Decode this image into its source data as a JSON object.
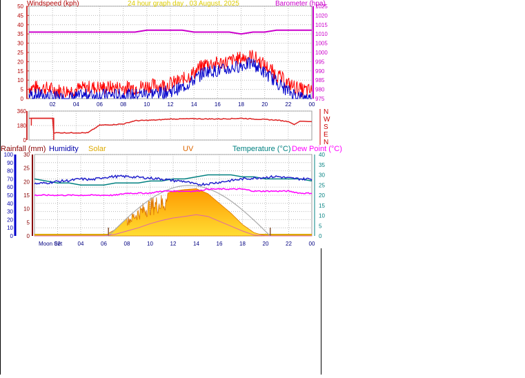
{
  "title": "24 hour graph day , 03 August, 2025",
  "colors": {
    "wind": "#ff0000",
    "wind2": "#0000cc",
    "baro": "#cc00cc",
    "dir": "#dd2222",
    "rain": "#880000",
    "hum": "#0000aa",
    "solar": "#ddaa00",
    "uv": "#dd6600",
    "temp": "#008080",
    "dew": "#ff00ff",
    "grid": "#b8b8b8",
    "axisline": "#cc3333"
  },
  "panel1": {
    "left_label": "Windspeed (kph)",
    "right_label": "Barometer (hpa)",
    "y_left_ticks": [
      "50",
      "45",
      "40",
      "35",
      "30",
      "25",
      "20",
      "15",
      "10",
      "5",
      "0"
    ],
    "y_right_ticks": [
      "1025",
      "1020",
      "1015",
      "1010",
      "1005",
      "1000",
      "995",
      "990",
      "985",
      "980",
      "975"
    ],
    "x_ticks": [
      "02",
      "04",
      "06",
      "08",
      "10",
      "12",
      "14",
      "16",
      "18",
      "20",
      "22",
      "00"
    ]
  },
  "panel2": {
    "y_ticks": [
      "360",
      "180",
      "0"
    ],
    "dir_labels": [
      "N",
      "W",
      "S",
      "E",
      "N"
    ]
  },
  "panel3": {
    "legend": {
      "rain": "Rainfall (mm)",
      "hum": "Humidity",
      "solar": "Solar",
      "uv": "UV",
      "temp": "Temperature (°C)",
      "dew": "Dew Point (°C)"
    },
    "y_hum_ticks": [
      "100",
      "90",
      "80",
      "70",
      "60",
      "50",
      "40",
      "30",
      "20",
      "10",
      "0"
    ],
    "y_rain_ticks": [
      "30",
      "25",
      "20",
      "15",
      "10",
      "5",
      "0"
    ],
    "y_temp_ticks": [
      "40",
      "35",
      "30",
      "25",
      "20",
      "15",
      "10",
      "5",
      "0"
    ],
    "x_ticks": [
      "Moon Set",
      "02",
      "04",
      "06",
      "08",
      "10",
      "12",
      "14",
      "16",
      "18",
      "20",
      "22",
      "00"
    ]
  },
  "chart_data": [
    {
      "type": "line",
      "title": "24 hour graph day , 03 August, 2025",
      "xlabel": "",
      "ylabel": "Windspeed (kph)",
      "y2label": "Barometer (hpa)",
      "ylim": [
        0,
        50
      ],
      "y2lim": [
        975,
        1025
      ],
      "x": [
        0,
        1,
        2,
        3,
        4,
        5,
        6,
        7,
        8,
        9,
        10,
        11,
        12,
        13,
        14,
        15,
        16,
        17,
        18,
        19,
        20,
        21,
        22,
        23,
        24
      ],
      "series": [
        {
          "name": "Windspeed (kph)",
          "axis": "left",
          "values": [
            4,
            4,
            3,
            2,
            3,
            4,
            4,
            4,
            4,
            4,
            5,
            5,
            6,
            8,
            12,
            17,
            17,
            18,
            20,
            21,
            16,
            11,
            6,
            3,
            2
          ]
        },
        {
          "name": "Barometer (hpa)",
          "axis": "right",
          "values": [
            1011,
            1011,
            1011,
            1011,
            1011,
            1011,
            1011,
            1011,
            1011,
            1011,
            1012,
            1012,
            1012,
            1012,
            1011,
            1011,
            1011,
            1011,
            1010,
            1011,
            1011,
            1012,
            1012,
            1012,
            1012
          ]
        }
      ],
      "grid": true
    },
    {
      "type": "line",
      "ylabel": "Wind direction",
      "ylim": [
        0,
        360
      ],
      "x": [
        0,
        1,
        2,
        2.1,
        3,
        4,
        5,
        6,
        7,
        8,
        9,
        10,
        11,
        12,
        13,
        14,
        15,
        16,
        17,
        18,
        19,
        20,
        21,
        22,
        22.5,
        23,
        24
      ],
      "series": [
        {
          "name": "Wind direction",
          "values": [
            270,
            270,
            270,
            90,
            90,
            90,
            90,
            185,
            190,
            200,
            240,
            245,
            250,
            262,
            262,
            265,
            262,
            262,
            265,
            270,
            262,
            255,
            248,
            230,
            192,
            235,
            228
          ]
        }
      ],
      "grid": true
    },
    {
      "type": "area",
      "ylabel": "Humidity / Rainfall (mm)",
      "y2label": "Temperature (°C)",
      "ylim": [
        0,
        100
      ],
      "y2lim": [
        0,
        40
      ],
      "x": [
        0,
        1,
        2,
        3,
        4,
        5,
        6,
        7,
        8,
        9,
        10,
        11,
        12,
        13,
        14,
        15,
        16,
        17,
        18,
        19,
        20,
        21,
        22,
        23,
        24
      ],
      "series": [
        {
          "name": "Humidity",
          "axis": "left",
          "values": [
            64,
            65,
            67,
            68,
            70,
            69,
            72,
            73,
            73,
            72,
            71,
            70,
            68,
            67,
            63,
            64,
            66,
            68,
            70,
            71,
            72,
            73,
            71,
            70,
            70
          ]
        },
        {
          "name": "Temperature (°C)",
          "axis": "right",
          "values": [
            28,
            27,
            26,
            26,
            25,
            25,
            25,
            26,
            26,
            26,
            27,
            27,
            28,
            28,
            29,
            30,
            30,
            30,
            29,
            29,
            28,
            28,
            28,
            28,
            27
          ]
        },
        {
          "name": "Dew Point (°C)",
          "axis": "right",
          "values": [
            20,
            20,
            20,
            20,
            20,
            20,
            20,
            20,
            21,
            21,
            21,
            22,
            22,
            22,
            22,
            23,
            23,
            23,
            23,
            22,
            22,
            22,
            22,
            21,
            21
          ]
        },
        {
          "name": "Solar",
          "axis": "left",
          "values": [
            0,
            0,
            0,
            0,
            0,
            0,
            0,
            8,
            22,
            35,
            45,
            50,
            55,
            57,
            58,
            52,
            40,
            28,
            14,
            4,
            0,
            0,
            0,
            0,
            0
          ]
        },
        {
          "name": "UV",
          "axis": "left",
          "values": [
            0,
            0,
            0,
            0,
            0,
            0,
            0,
            2,
            6,
            10,
            15,
            19,
            22,
            24,
            26,
            24,
            18,
            12,
            6,
            1,
            0,
            0,
            0,
            0,
            0
          ]
        },
        {
          "name": "Rainfall (mm)",
          "axis": "left",
          "values": [
            0,
            0,
            0,
            0,
            0,
            0,
            0,
            0,
            0,
            0,
            0,
            0,
            0,
            0,
            0,
            0,
            0,
            0,
            0,
            0,
            0,
            0,
            0,
            0,
            0
          ]
        }
      ],
      "grid": true
    }
  ]
}
